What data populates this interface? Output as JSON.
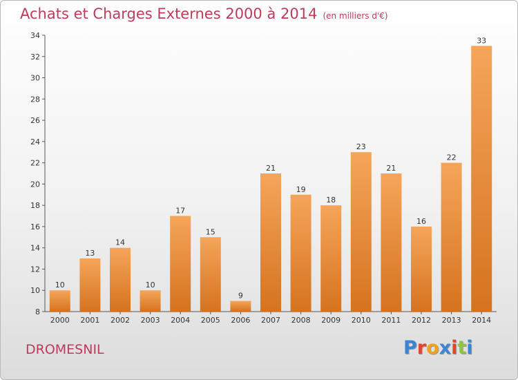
{
  "header": {
    "title": "Achats et Charges Externes 2000 à 2014",
    "unit_note": "(en milliers d'€)"
  },
  "footer": {
    "place_name": "DROMESNIL",
    "logo_text": "Proxiti",
    "logo_colors": [
      "#3a86d4",
      "#e2462e",
      "#f3a21d",
      "#3a86d4",
      "#e2462e",
      "#8cc63f",
      "#3a86d4"
    ]
  },
  "chart_data": {
    "type": "bar",
    "title": "Achats et Charges Externes 2000 à 2014",
    "subtitle": "(en milliers d'€)",
    "xlabel": "",
    "ylabel": "",
    "categories": [
      "2000",
      "2001",
      "2002",
      "2003",
      "2004",
      "2005",
      "2006",
      "2007",
      "2008",
      "2009",
      "2010",
      "2011",
      "2012",
      "2013",
      "2014"
    ],
    "values": [
      10,
      13,
      14,
      10,
      17,
      15,
      9,
      21,
      19,
      18,
      23,
      21,
      16,
      22,
      33
    ],
    "ylim": [
      8,
      34
    ],
    "yticks": [
      8,
      10,
      12,
      14,
      16,
      18,
      20,
      22,
      24,
      26,
      28,
      30,
      32,
      34
    ],
    "grid": false,
    "data_labels": true,
    "bar_color_top": "#f5a55a",
    "bar_color_bottom": "#d5731f"
  }
}
